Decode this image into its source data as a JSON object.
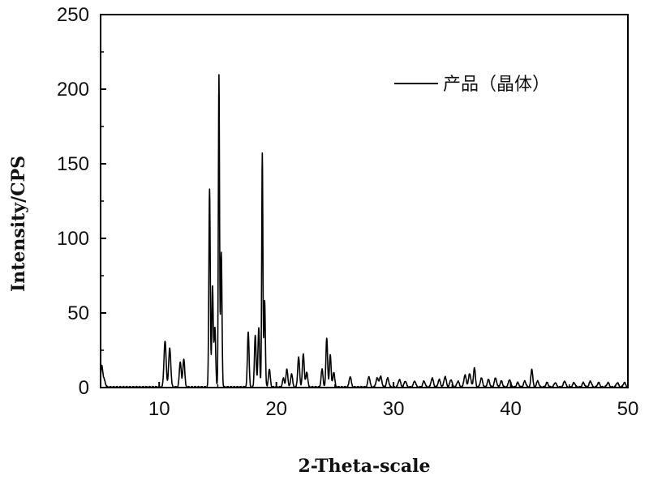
{
  "chart_data": {
    "type": "line",
    "title": "",
    "xlabel": "2-Theta-scale",
    "ylabel": "Intensity/CPS",
    "xlim": [
      5,
      50
    ],
    "ylim": [
      0,
      250
    ],
    "xticks": [
      10,
      20,
      30,
      40,
      50
    ],
    "xtick_labels": [
      "10",
      "20",
      "30",
      "40",
      "50"
    ],
    "yticks": [
      0,
      50,
      100,
      150,
      200,
      250
    ],
    "ytick_labels": [
      "0",
      "50",
      "100",
      "150",
      "200",
      "250"
    ],
    "grid": false,
    "legend_position": "top-right",
    "series": [
      {
        "name": "产品（晶体）",
        "color": "#000000",
        "baseline": 0,
        "peaks": [
          [
            5.1,
            14,
            0.08
          ],
          [
            5.3,
            5,
            0.1
          ],
          [
            10.5,
            31,
            0.09
          ],
          [
            10.9,
            26,
            0.09
          ],
          [
            11.8,
            17,
            0.08
          ],
          [
            12.1,
            19,
            0.08
          ],
          [
            14.3,
            133,
            0.06
          ],
          [
            14.55,
            68,
            0.06
          ],
          [
            14.75,
            40,
            0.07
          ],
          [
            15.1,
            209,
            0.05
          ],
          [
            15.3,
            90,
            0.06
          ],
          [
            17.6,
            37,
            0.07
          ],
          [
            18.2,
            35,
            0.07
          ],
          [
            18.5,
            40,
            0.07
          ],
          [
            18.8,
            157,
            0.05
          ],
          [
            19.0,
            58,
            0.06
          ],
          [
            19.4,
            12,
            0.08
          ],
          [
            20.6,
            6,
            0.08
          ],
          [
            20.9,
            12,
            0.08
          ],
          [
            21.3,
            9,
            0.08
          ],
          [
            21.9,
            20,
            0.08
          ],
          [
            22.3,
            22,
            0.08
          ],
          [
            22.6,
            10,
            0.08
          ],
          [
            23.9,
            12,
            0.08
          ],
          [
            24.3,
            33,
            0.07
          ],
          [
            24.6,
            22,
            0.07
          ],
          [
            24.9,
            10,
            0.08
          ],
          [
            26.3,
            7,
            0.09
          ],
          [
            27.9,
            7,
            0.09
          ],
          [
            28.6,
            6,
            0.1
          ],
          [
            28.9,
            7,
            0.1
          ],
          [
            29.5,
            6,
            0.1
          ],
          [
            30.5,
            5,
            0.1
          ],
          [
            31.0,
            4,
            0.1
          ],
          [
            31.8,
            4,
            0.1
          ],
          [
            32.6,
            4,
            0.1
          ],
          [
            33.3,
            6,
            0.1
          ],
          [
            33.9,
            5,
            0.1
          ],
          [
            34.4,
            7,
            0.1
          ],
          [
            34.9,
            5,
            0.1
          ],
          [
            35.5,
            4,
            0.1
          ],
          [
            36.1,
            8,
            0.1
          ],
          [
            36.5,
            9,
            0.1
          ],
          [
            36.9,
            13,
            0.08
          ],
          [
            37.5,
            6,
            0.1
          ],
          [
            38.1,
            5,
            0.1
          ],
          [
            38.7,
            6,
            0.1
          ],
          [
            39.2,
            4,
            0.1
          ],
          [
            39.9,
            5,
            0.1
          ],
          [
            40.6,
            3,
            0.1
          ],
          [
            41.2,
            4,
            0.1
          ],
          [
            41.8,
            12,
            0.08
          ],
          [
            42.3,
            4,
            0.1
          ],
          [
            43.1,
            3,
            0.1
          ],
          [
            43.8,
            3,
            0.1
          ],
          [
            44.6,
            4,
            0.1
          ],
          [
            45.4,
            3,
            0.1
          ],
          [
            46.2,
            3,
            0.1
          ],
          [
            46.8,
            4,
            0.1
          ],
          [
            47.5,
            3,
            0.1
          ],
          [
            48.3,
            3,
            0.1
          ],
          [
            49.1,
            3,
            0.1
          ],
          [
            49.7,
            3,
            0.1
          ]
        ]
      }
    ]
  }
}
